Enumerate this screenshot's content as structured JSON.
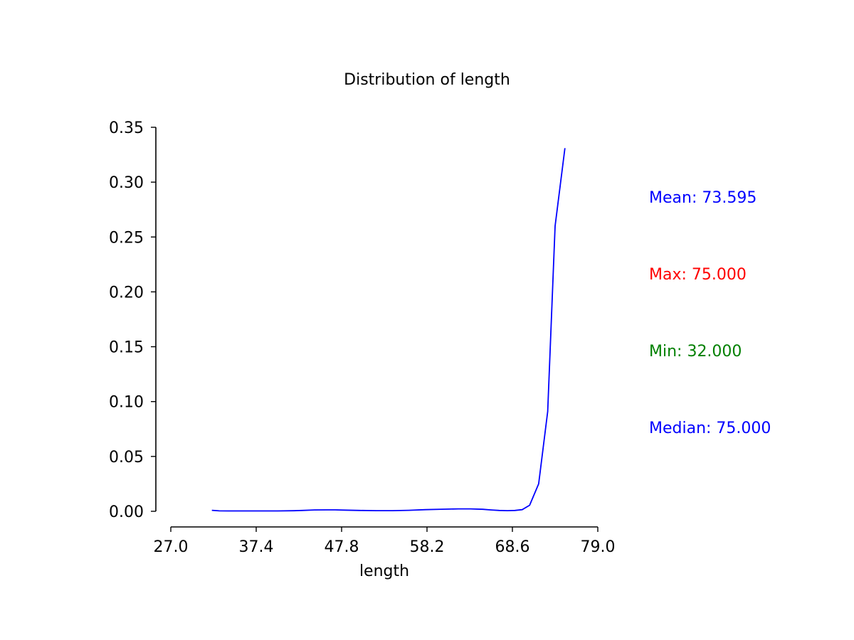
{
  "chart_data": {
    "type": "line",
    "title": "Distribution of length",
    "xlabel": "length",
    "ylabel": "",
    "xlim": [
      27.0,
      79.0
    ],
    "ylim": [
      0,
      0.35
    ],
    "x_ticks": [
      "27.0",
      "37.4",
      "47.8",
      "58.2",
      "68.6",
      "79.0"
    ],
    "y_ticks": [
      "0.00",
      "0.05",
      "0.10",
      "0.15",
      "0.20",
      "0.25",
      "0.30",
      "0.35"
    ],
    "grid": false,
    "series": [
      {
        "color": "#0000ff",
        "x": [
          32.0,
          32.9,
          34.0,
          36.0,
          38.0,
          40.0,
          42.0,
          43.0,
          44.5,
          46.0,
          47.0,
          48.0,
          50.0,
          52.0,
          54.0,
          56.0,
          58.0,
          60.0,
          62.0,
          63.5,
          65.0,
          66.0,
          67.0,
          68.0,
          68.9,
          69.8,
          70.7,
          71.8,
          72.9,
          73.8,
          75.0
        ],
        "y": [
          0.0009,
          0.0004,
          0.0003,
          0.0003,
          0.0003,
          0.0003,
          0.0005,
          0.0008,
          0.0012,
          0.0013,
          0.0013,
          0.0011,
          0.0008,
          0.0006,
          0.0006,
          0.0009,
          0.0015,
          0.0019,
          0.0022,
          0.0022,
          0.0018,
          0.0012,
          0.0008,
          0.0006,
          0.0008,
          0.0015,
          0.0055,
          0.025,
          0.091,
          0.26,
          0.331
        ]
      }
    ]
  },
  "stats": {
    "mean": "Mean: 73.595",
    "max": "Max: 75.000",
    "min": "Min: 32.000",
    "median": "Median: 75.000"
  },
  "colors": {
    "line": "#0000ff",
    "mean": "#0000ff",
    "max": "#ff0000",
    "min": "#008000",
    "median": "#0000ff",
    "axis": "#000000"
  }
}
